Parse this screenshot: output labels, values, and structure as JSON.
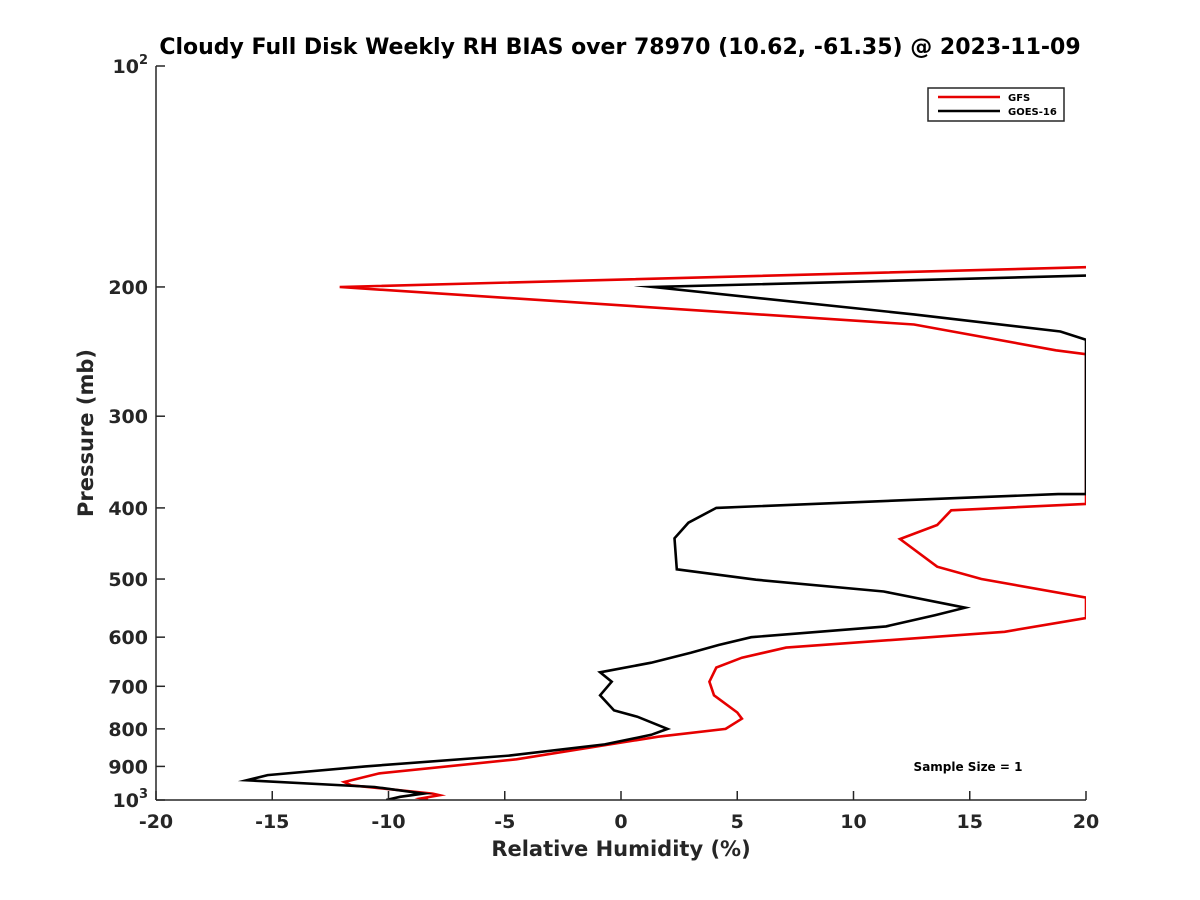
{
  "chart_data": {
    "type": "line",
    "title": "Cloudy Full Disk Weekly RH BIAS over 78970 (10.62, -61.35) @ 2023-11-09",
    "xlabel": "Relative Humidity (%)",
    "ylabel": "Pressure (mb)",
    "xlim": [
      -20,
      20
    ],
    "ylim": [
      1000,
      100
    ],
    "y_scale": "log",
    "y_reversed": true,
    "grid": false,
    "x_ticks": [
      -20,
      -15,
      -10,
      -5,
      0,
      5,
      10,
      15,
      20
    ],
    "x_tick_labels": [
      "-20",
      "-15",
      "-10",
      "-5",
      "0",
      "5",
      "10",
      "15",
      "20"
    ],
    "y_ticks": [
      {
        "value": 100,
        "base": "10",
        "exp": "2"
      },
      {
        "value": 200,
        "label": "200"
      },
      {
        "value": 300,
        "label": "300"
      },
      {
        "value": 400,
        "label": "400"
      },
      {
        "value": 500,
        "label": "500"
      },
      {
        "value": 600,
        "label": "600"
      },
      {
        "value": 700,
        "label": "700"
      },
      {
        "value": 800,
        "label": "800"
      },
      {
        "value": 900,
        "label": "900"
      },
      {
        "value": 1000,
        "base": "10",
        "exp": "3"
      }
    ],
    "legend_position": "top-right",
    "annotation": "Sample Size = 1",
    "series": [
      {
        "name": "GFS",
        "color": "#e60000",
        "points": [
          [
            20,
            188
          ],
          [
            -12.1,
            200
          ],
          [
            12.6,
            225
          ],
          [
            18.7,
            244
          ],
          [
            20,
            247
          ],
          [
            20,
            395
          ],
          [
            14.2,
            403
          ],
          [
            13.6,
            422
          ],
          [
            12,
            441
          ],
          [
            13.6,
            481
          ],
          [
            15.5,
            500
          ],
          [
            20,
            530
          ],
          [
            20,
            565
          ],
          [
            16.5,
            590
          ],
          [
            7.1,
            620
          ],
          [
            5.2,
            640
          ],
          [
            4.1,
            660
          ],
          [
            3.8,
            690
          ],
          [
            4,
            720
          ],
          [
            5,
            760
          ],
          [
            5.2,
            775
          ],
          [
            4.5,
            800
          ],
          [
            1.6,
            820
          ],
          [
            -4.5,
            880
          ],
          [
            -10.4,
            920
          ],
          [
            -11.9,
            945
          ],
          [
            -11.6,
            955
          ],
          [
            -8.1,
            980
          ],
          [
            -7.8,
            985
          ],
          [
            -8.6,
            995
          ],
          [
            -8.3,
            1000
          ]
        ]
      },
      {
        "name": "GOES-16",
        "color": "#000000",
        "points": [
          [
            20,
            193
          ],
          [
            1.4,
            200
          ],
          [
            12.6,
            218
          ],
          [
            18.9,
            230
          ],
          [
            20,
            236
          ],
          [
            20,
            383
          ],
          [
            18.8,
            383
          ],
          [
            14.3,
            388
          ],
          [
            4.1,
            400
          ],
          [
            2.9,
            419
          ],
          [
            2.3,
            440
          ],
          [
            2.4,
            485
          ],
          [
            5.8,
            501
          ],
          [
            11.3,
            520
          ],
          [
            14.8,
            547
          ],
          [
            13.5,
            560
          ],
          [
            11.4,
            580
          ],
          [
            5.6,
            600
          ],
          [
            4.2,
            615
          ],
          [
            3,
            630
          ],
          [
            1.3,
            650
          ],
          [
            -0.9,
            670
          ],
          [
            -0.4,
            690
          ],
          [
            -0.9,
            720
          ],
          [
            -0.3,
            755
          ],
          [
            0.7,
            770
          ],
          [
            2,
            800
          ],
          [
            1.3,
            815
          ],
          [
            -0.7,
            840
          ],
          [
            -4.8,
            870
          ],
          [
            -11,
            900
          ],
          [
            -15.2,
            925
          ],
          [
            -15.5,
            930
          ],
          [
            -16.1,
            940
          ],
          [
            -10.6,
            960
          ],
          [
            -8.5,
            980
          ],
          [
            -9.5,
            990
          ],
          [
            -10.1,
            1000
          ]
        ]
      }
    ]
  }
}
